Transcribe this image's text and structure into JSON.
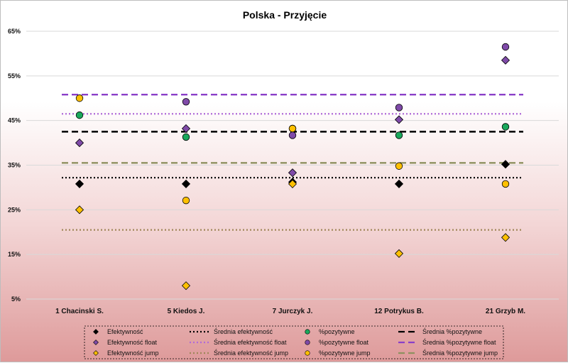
{
  "chart_data": {
    "type": "scatter",
    "title": "Polska - Przyjęcie",
    "xlabel": "",
    "ylabel": "",
    "categories": [
      "1 Chacinski S.",
      "5 Kiedos J.",
      "7 Jurczyk J.",
      "12 Potrykus B.",
      "21 Grzyb M."
    ],
    "ylim": [
      0.05,
      0.65
    ],
    "yticks": [
      {
        "value": 0.05,
        "label": "5%"
      },
      {
        "value": 0.15,
        "label": "15%"
      },
      {
        "value": 0.25,
        "label": "25%"
      },
      {
        "value": 0.35,
        "label": "35%"
      },
      {
        "value": 0.45,
        "label": "45%"
      },
      {
        "value": 0.55,
        "label": "55%"
      },
      {
        "value": 0.65,
        "label": "65%"
      }
    ],
    "grid": true,
    "legend_position": "bottom",
    "series": [
      {
        "name": "Efektywność",
        "kind": "points",
        "marker": "diamond",
        "color": "#000000",
        "values": [
          0.308,
          0.308,
          0.312,
          0.308,
          0.352
        ]
      },
      {
        "name": "Średnia efektywność",
        "kind": "line",
        "dash": "dotted",
        "color": "#000000",
        "value": 0.322
      },
      {
        "name": "%pozytywne",
        "kind": "points",
        "marker": "circle",
        "color": "#1aa85c",
        "values": [
          0.462,
          0.413,
          0.432,
          0.417,
          0.436
        ]
      },
      {
        "name": "Średnia %pozytywne",
        "kind": "line",
        "dash": "dashed",
        "color": "#000000",
        "value": 0.425
      },
      {
        "name": "Efektywność float",
        "kind": "points",
        "marker": "diamond",
        "color": "#7f4aa8",
        "values": [
          0.4,
          0.432,
          0.333,
          0.452,
          0.585
        ]
      },
      {
        "name": "Średnia efektywność float",
        "kind": "line",
        "dash": "dotted",
        "color": "#b06ad8",
        "value": 0.465
      },
      {
        "name": "%pozytywne float",
        "kind": "points",
        "marker": "circle",
        "color": "#7f4aa8",
        "values": [
          null,
          0.492,
          0.417,
          0.479,
          0.615
        ]
      },
      {
        "name": "Średnia %pozytywne float",
        "kind": "line",
        "dash": "dashed",
        "color": "#8a3fc8",
        "value": 0.508
      },
      {
        "name": "Efektywność jump",
        "kind": "points",
        "marker": "diamond",
        "color": "#ffc000",
        "values": [
          0.25,
          0.08,
          0.308,
          0.152,
          0.188
        ]
      },
      {
        "name": "Średnia efektywność jump",
        "kind": "line",
        "dash": "dotted",
        "color": "#a0875a",
        "value": 0.205
      },
      {
        "name": "%pozytywne jump",
        "kind": "points",
        "marker": "circle",
        "color": "#ffc000",
        "values": [
          0.5,
          0.271,
          0.432,
          0.348,
          0.308
        ]
      },
      {
        "name": "Średnia %pozytywne jump",
        "kind": "line",
        "dash": "dashed",
        "color": "#8f9160",
        "value": 0.355
      }
    ]
  }
}
